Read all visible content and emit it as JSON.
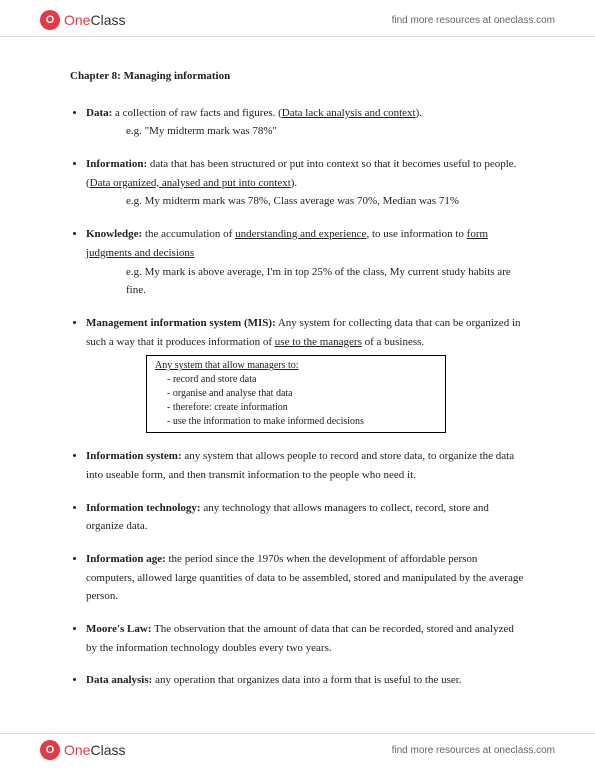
{
  "brand": {
    "glyph": "O",
    "name_prefix": "One",
    "name_suffix": "Class",
    "tagline": "find more resources at oneclass.com"
  },
  "chapter_title": "Chapter 8: Managing information",
  "items": [
    {
      "term": "Data:",
      "def_pre": " a collection of raw facts and figures. (",
      "def_u": "Data lack analysis and context",
      "def_post": ").",
      "eg": "e.g. \"My midterm mark was 78%\""
    },
    {
      "term": "Information:",
      "def_pre": " data that has been structured or put into context so that it becomes useful to people. (",
      "def_u": "Data organized, analysed and put into context",
      "def_post": ").",
      "eg": "e.g. My midterm mark was 78%, Class average was 70%, Median was 71%"
    },
    {
      "term": "Knowledge:",
      "def_pre": " the accumulation of ",
      "def_u": "understanding and experience",
      "def_mid": ", to use information to ",
      "def_u2": "form judgments and decisions",
      "def_post": "",
      "eg": "e.g. My mark is above average, I'm in top 25% of the class, My current study habits are fine."
    },
    {
      "term": "Management information system (MIS):",
      "def_pre": " Any system for collecting data that can be organized in such a way that it produces information of ",
      "def_u": "use to the managers",
      "def_post": " of a business.",
      "box": {
        "title": "Any system that allow managers to:",
        "lines": [
          "record and store data",
          "organise and analyse that data",
          "therefore: create information",
          "use the information to make informed decisions"
        ]
      }
    },
    {
      "term": "Information system:",
      "def_pre": " any system that allows people to record and store data, to organize the data into useable form, and then transmit information to the people who need it."
    },
    {
      "term": "Information technology:",
      "def_pre": " any technology that allows managers to collect, record, store and organize data."
    },
    {
      "term": "Information age:",
      "def_pre": " the period since the 1970s when the development of affordable person computers, allowed large quantities of data to be assembled, stored and manipulated by the average person."
    },
    {
      "term": "Moore's Law:",
      "def_pre": " The observation that the amount of data that can be recorded, stored and analyzed by the information technology doubles every two years."
    },
    {
      "term": "Data analysis:",
      "def_pre": " any operation that organizes data into a form that is useful to the    user."
    }
  ]
}
